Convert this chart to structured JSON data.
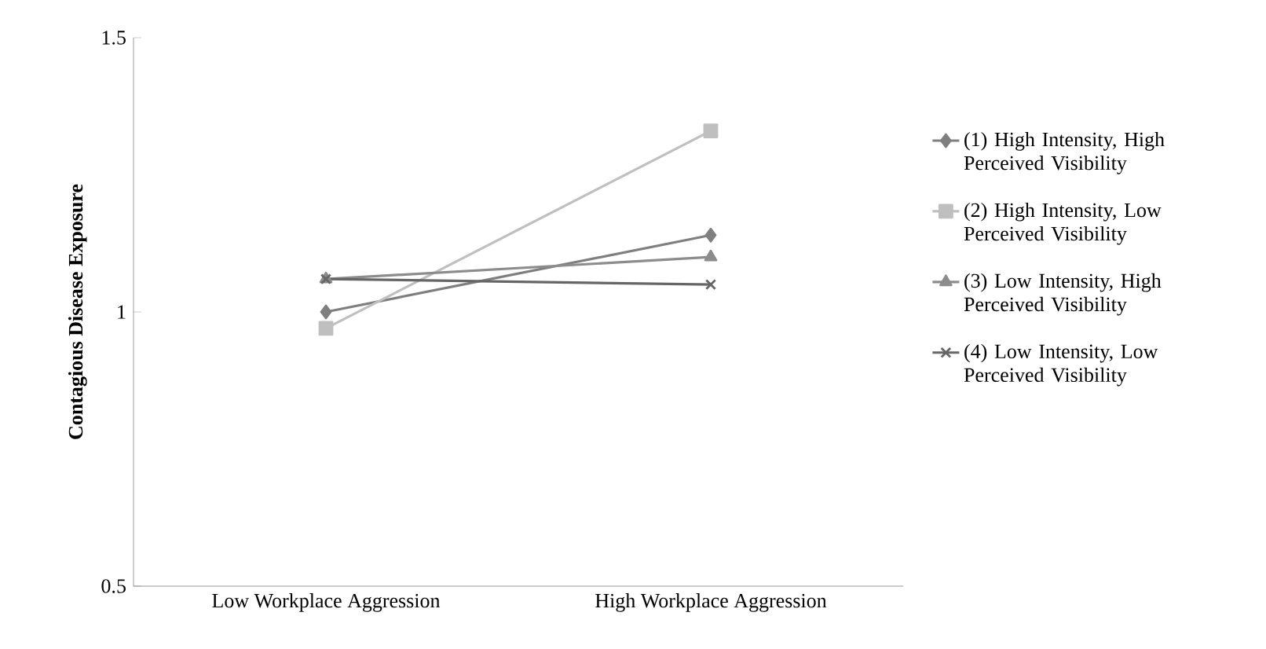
{
  "chart_data": {
    "type": "line",
    "ylabel": "Contagious Disease Exposure",
    "categories": [
      "Low Workplace Aggression",
      "High Workplace Aggression"
    ],
    "ylim": [
      0.5,
      1.5
    ],
    "yticks": [
      0.5,
      1,
      1.5
    ],
    "grid": false,
    "legend": "right",
    "series": [
      {
        "name": "(1) High  Intensity, High Perceived Visibility",
        "color": "#7f7f7f",
        "marker": "diamond",
        "values": [
          1.0,
          1.14
        ]
      },
      {
        "name": "(2) High  Intensity, Low Perceived Visibility",
        "color": "#bfbfbf",
        "marker": "square",
        "values": [
          0.97,
          1.33
        ]
      },
      {
        "name": "(3) Low  Intensity, High Perceived Visibility",
        "color": "#8c8c8c",
        "marker": "triangle",
        "values": [
          1.06,
          1.1
        ]
      },
      {
        "name": "(4) Low  Intensity, Low Perceived Visibility",
        "color": "#666666",
        "marker": "cross",
        "values": [
          1.06,
          1.05
        ]
      }
    ]
  }
}
